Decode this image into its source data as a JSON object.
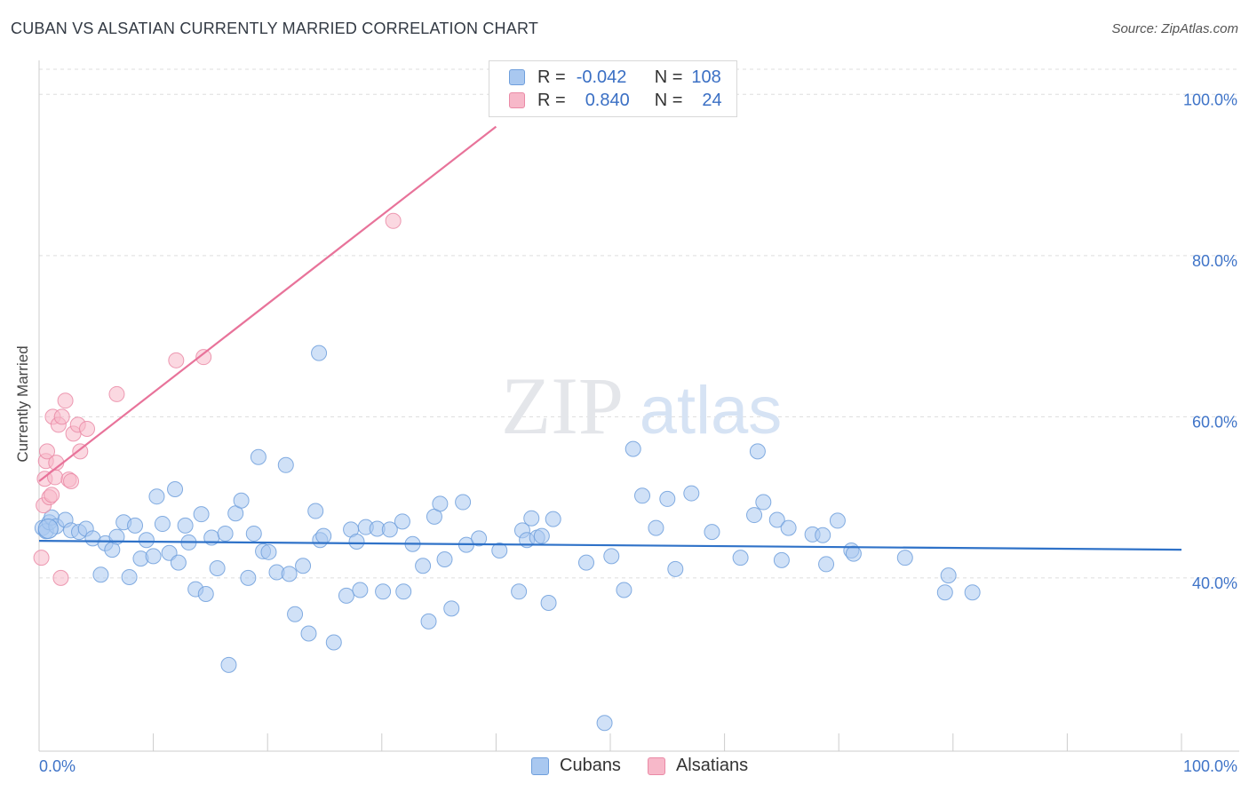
{
  "header": {
    "title": "CUBAN VS ALSATIAN CURRENTLY MARRIED CORRELATION CHART",
    "source": "Source: ZipAtlas.com"
  },
  "colors": {
    "blue_fill": "#a9c8f0",
    "blue_stroke": "#6f9fdc",
    "blue_line": "#2f72c8",
    "pink_fill": "#f7b8c9",
    "pink_stroke": "#ea8aa6",
    "pink_line": "#e8739a",
    "tick_text": "#3f74c8",
    "grid": "#dddddd"
  },
  "legend": {
    "r_label": "R =",
    "n_label": "N =",
    "cubans": {
      "r": "-0.042",
      "n": "108"
    },
    "alsatians": {
      "r": "0.840",
      "n": "24"
    }
  },
  "bottom_legend": {
    "cubans": "Cubans",
    "alsatians": "Alsatians"
  },
  "watermark": {
    "zip": "ZIP",
    "atlas": "atlas"
  },
  "chart_data": {
    "type": "scatter",
    "title": "CUBAN VS ALSATIAN CURRENTLY MARRIED CORRELATION CHART",
    "xlabel": "",
    "ylabel": "Currently Married",
    "xlim": [
      0,
      100
    ],
    "ylim": [
      18.5,
      104
    ],
    "x_tick_labels": [
      {
        "value": 0,
        "label": "0.0%"
      },
      {
        "value": 100,
        "label": "100.0%"
      }
    ],
    "x_minor_ticks": [
      10,
      20,
      30,
      40,
      50,
      60,
      70,
      80,
      90
    ],
    "y_ticks": [
      {
        "value": 40,
        "label": "40.0%"
      },
      {
        "value": 60,
        "label": "60.0%"
      },
      {
        "value": 80,
        "label": "80.0%"
      },
      {
        "value": 100,
        "label": "100.0%"
      }
    ],
    "grid": true,
    "legend_position": "top-center",
    "series": [
      {
        "name": "Cubans",
        "r": -0.042,
        "n": 108,
        "trend": {
          "x": [
            0,
            100
          ],
          "y": [
            44.6,
            43.5
          ]
        },
        "points": [
          [
            0.3,
            46.2
          ],
          [
            0.6,
            45.8
          ],
          [
            0.9,
            46.9
          ],
          [
            1.1,
            47.5
          ],
          [
            1.5,
            46.4
          ],
          [
            2.3,
            47.2
          ],
          [
            2.8,
            45.9
          ],
          [
            3.5,
            45.7
          ],
          [
            4.1,
            46.1
          ],
          [
            4.7,
            44.9
          ],
          [
            5.4,
            40.4
          ],
          [
            5.8,
            44.3
          ],
          [
            6.4,
            43.5
          ],
          [
            6.8,
            45.1
          ],
          [
            7.4,
            46.9
          ],
          [
            7.9,
            40.1
          ],
          [
            8.4,
            46.5
          ],
          [
            8.9,
            42.4
          ],
          [
            9.4,
            44.7
          ],
          [
            10.0,
            42.7
          ],
          [
            10.3,
            50.1
          ],
          [
            10.8,
            46.7
          ],
          [
            11.4,
            43.1
          ],
          [
            11.9,
            51.0
          ],
          [
            12.2,
            41.9
          ],
          [
            12.8,
            46.5
          ],
          [
            13.1,
            44.4
          ],
          [
            13.7,
            38.6
          ],
          [
            14.2,
            47.9
          ],
          [
            14.6,
            38.0
          ],
          [
            15.1,
            45.0
          ],
          [
            15.6,
            41.2
          ],
          [
            16.3,
            45.5
          ],
          [
            16.6,
            29.2
          ],
          [
            17.2,
            48.0
          ],
          [
            17.7,
            49.6
          ],
          [
            18.3,
            40.0
          ],
          [
            18.8,
            45.5
          ],
          [
            19.2,
            55.0
          ],
          [
            19.6,
            43.3
          ],
          [
            20.1,
            43.2
          ],
          [
            20.8,
            40.7
          ],
          [
            21.6,
            54.0
          ],
          [
            21.9,
            40.5
          ],
          [
            22.4,
            35.5
          ],
          [
            23.1,
            41.5
          ],
          [
            23.6,
            33.1
          ],
          [
            24.2,
            48.3
          ],
          [
            24.6,
            44.7
          ],
          [
            24.9,
            45.2
          ],
          [
            25.8,
            32.0
          ],
          [
            26.9,
            37.8
          ],
          [
            27.3,
            46.0
          ],
          [
            27.8,
            44.5
          ],
          [
            28.1,
            38.5
          ],
          [
            28.6,
            46.3
          ],
          [
            29.6,
            46.1
          ],
          [
            30.1,
            38.3
          ],
          [
            30.7,
            46.0
          ],
          [
            31.8,
            47.0
          ],
          [
            31.9,
            38.3
          ],
          [
            32.7,
            44.2
          ],
          [
            33.6,
            41.5
          ],
          [
            34.1,
            34.6
          ],
          [
            34.6,
            47.6
          ],
          [
            35.1,
            49.2
          ],
          [
            35.5,
            42.3
          ],
          [
            36.1,
            36.2
          ],
          [
            37.1,
            49.4
          ],
          [
            37.4,
            44.1
          ],
          [
            38.5,
            44.9
          ],
          [
            40.3,
            43.4
          ],
          [
            42.0,
            38.3
          ],
          [
            42.3,
            45.9
          ],
          [
            42.7,
            44.7
          ],
          [
            43.1,
            47.4
          ],
          [
            43.6,
            45.0
          ],
          [
            44.0,
            45.2
          ],
          [
            44.6,
            36.9
          ],
          [
            45.0,
            47.3
          ],
          [
            47.9,
            41.9
          ],
          [
            50.1,
            42.7
          ],
          [
            51.2,
            38.5
          ],
          [
            52.0,
            56.0
          ],
          [
            52.8,
            50.2
          ],
          [
            54.0,
            46.2
          ],
          [
            55.0,
            49.8
          ],
          [
            55.7,
            41.1
          ],
          [
            57.1,
            50.5
          ],
          [
            58.9,
            45.7
          ],
          [
            61.4,
            42.5
          ],
          [
            62.6,
            47.8
          ],
          [
            62.9,
            55.7
          ],
          [
            63.4,
            49.4
          ],
          [
            64.6,
            47.2
          ],
          [
            65.0,
            42.2
          ],
          [
            65.6,
            46.2
          ],
          [
            67.7,
            45.4
          ],
          [
            68.6,
            45.3
          ],
          [
            68.9,
            41.7
          ],
          [
            69.9,
            47.1
          ],
          [
            71.1,
            43.4
          ],
          [
            71.3,
            43.0
          ],
          [
            75.8,
            42.5
          ],
          [
            79.3,
            38.2
          ],
          [
            79.6,
            40.3
          ],
          [
            81.7,
            38.2
          ],
          [
            49.5,
            22.0
          ],
          [
            24.5,
            67.9
          ]
        ]
      },
      {
        "name": "Alsatians",
        "r": 0.84,
        "n": 24,
        "trend": {
          "x": [
            0,
            40
          ],
          "y": [
            52.0,
            96.0
          ]
        },
        "points": [
          [
            0.2,
            42.5
          ],
          [
            0.4,
            49.0
          ],
          [
            0.5,
            52.3
          ],
          [
            0.6,
            54.5
          ],
          [
            0.7,
            55.7
          ],
          [
            0.9,
            50.0
          ],
          [
            1.1,
            50.3
          ],
          [
            1.2,
            60.0
          ],
          [
            1.4,
            52.5
          ],
          [
            1.5,
            54.3
          ],
          [
            1.7,
            59.0
          ],
          [
            1.9,
            40.0
          ],
          [
            2.0,
            60.0
          ],
          [
            2.3,
            62.0
          ],
          [
            2.6,
            52.2
          ],
          [
            2.8,
            52.0
          ],
          [
            3.0,
            57.9
          ],
          [
            3.4,
            59.0
          ],
          [
            3.6,
            55.7
          ],
          [
            4.2,
            58.5
          ],
          [
            6.8,
            62.8
          ],
          [
            12.0,
            67.0
          ],
          [
            14.4,
            67.4
          ],
          [
            31.0,
            84.3
          ]
        ]
      }
    ]
  }
}
